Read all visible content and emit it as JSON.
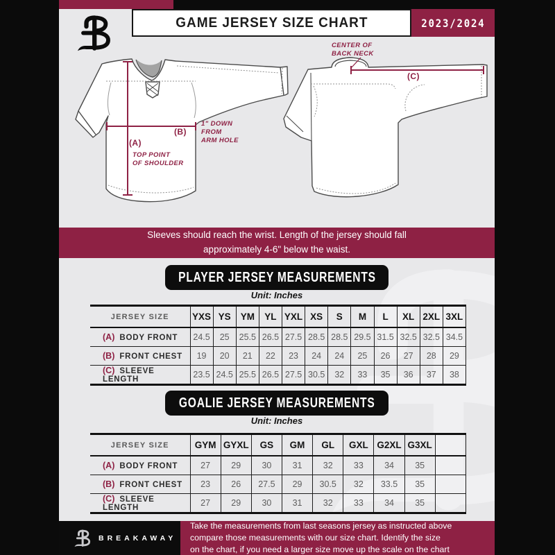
{
  "header": {
    "title": "GAME JERSEY SIZE CHART",
    "season": "2023/2024",
    "logo": "breakaway-b-logo"
  },
  "diagram": {
    "banner": "Sleeves should reach the wrist. Length of the jersey should fall\napproximately 4-6\" below the waist.",
    "front": {
      "label_a": "(A)",
      "note_a": "TOP POINT\nOF SHOULDER",
      "label_b": "(B)",
      "note_b": "1\" DOWN\nFROM\nARM HOLE"
    },
    "back": {
      "label_c": "(C)",
      "note_c": "CENTER OF\nBACK NECK"
    }
  },
  "player_table": {
    "title": "PLAYER JERSEY MEASUREMENTS",
    "unit": "Unit: Inches",
    "size_header": "JERSEY SIZE",
    "sizes": [
      "YXS",
      "YS",
      "YM",
      "YL",
      "YXL",
      "XS",
      "S",
      "M",
      "L",
      "XL",
      "2XL",
      "3XL"
    ],
    "rows": [
      {
        "key": "(A)",
        "label": "BODY FRONT",
        "values": [
          "24.5",
          "25",
          "25.5",
          "26.5",
          "27.5",
          "28.5",
          "28.5",
          "29.5",
          "31.5",
          "32.5",
          "32.5",
          "34.5"
        ]
      },
      {
        "key": "(B)",
        "label": "FRONT CHEST",
        "values": [
          "19",
          "20",
          "21",
          "22",
          "23",
          "24",
          "24",
          "25",
          "26",
          "27",
          "28",
          "29"
        ]
      },
      {
        "key": "(C)",
        "label": "SLEEVE LENGTH",
        "values": [
          "23.5",
          "24.5",
          "25.5",
          "26.5",
          "27.5",
          "30.5",
          "32",
          "33",
          "35",
          "36",
          "37",
          "38"
        ]
      }
    ]
  },
  "goalie_table": {
    "title": "GOALIE JERSEY MEASUREMENTS",
    "unit": "Unit: Inches",
    "size_header": "JERSEY SIZE",
    "sizes": [
      "GYM",
      "GYXL",
      "GS",
      "GM",
      "GL",
      "GXL",
      "G2XL",
      "G3XL",
      ""
    ],
    "rows": [
      {
        "key": "(A)",
        "label": "BODY FRONT",
        "values": [
          "27",
          "29",
          "30",
          "31",
          "32",
          "33",
          "34",
          "35",
          ""
        ]
      },
      {
        "key": "(B)",
        "label": "FRONT CHEST",
        "values": [
          "23",
          "26",
          "27.5",
          "29",
          "30.5",
          "32",
          "33.5",
          "35",
          ""
        ]
      },
      {
        "key": "(C)",
        "label": "SLEEVE LENGTH",
        "values": [
          "27",
          "29",
          "30",
          "31",
          "32",
          "33",
          "34",
          "35",
          ""
        ]
      }
    ]
  },
  "footer": {
    "brand": "BREAKAWAY",
    "note": "Take the measurements from last seasons jersey as instructed above\ncompare those measurements  with our size chart. Identify the size\non the chart, if you need a larger size move up the scale on the chart"
  },
  "colors": {
    "maroon": "#8E2144",
    "black": "#0B0B0B",
    "page_gray": "#E8E8EA"
  }
}
